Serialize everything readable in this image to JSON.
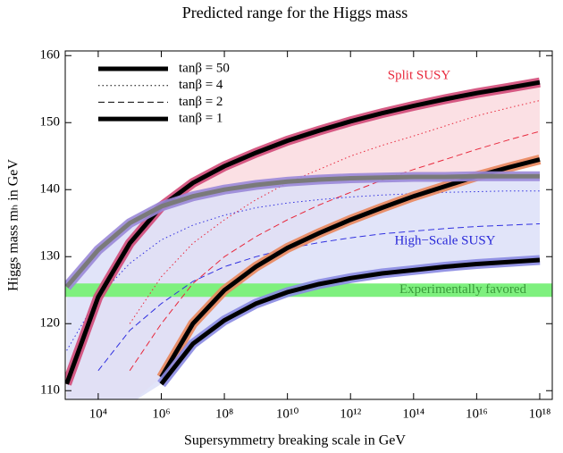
{
  "chart_data": {
    "type": "line",
    "title": "Predicted range for the Higgs mass",
    "x_label": "Supersymmetry breaking scale in GeV",
    "y_label": "Higgs mass mₕ in GeV",
    "xscale": "log",
    "x": [
      1000,
      10000,
      100000,
      1000000,
      10000000,
      100000000,
      1000000000,
      10000000000,
      100000000000,
      1000000000000,
      10000000000000,
      100000000000000,
      1000000000000000,
      10000000000000000,
      100000000000000000,
      1000000000000000000
    ],
    "xlim": [
      900,
      2500000000000000000
    ],
    "xticks": [
      {
        "value": 10000,
        "label": "10⁴"
      },
      {
        "value": 1000000,
        "label": "10⁶"
      },
      {
        "value": 100000000,
        "label": "10⁸"
      },
      {
        "value": 10000000000,
        "label": "10¹⁰"
      },
      {
        "value": 1000000000000,
        "label": "10¹²"
      },
      {
        "value": 100000000000000,
        "label": "10¹⁴"
      },
      {
        "value": 10000000000000000,
        "label": "10¹⁶"
      },
      {
        "value": 1000000000000000000,
        "label": "10¹⁸"
      }
    ],
    "ylim": [
      108.7,
      160.7
    ],
    "yticks": [
      110,
      120,
      130,
      140,
      150,
      160
    ],
    "legend": [
      {
        "name": "tanβ = 50",
        "dash": "none",
        "width": 5
      },
      {
        "name": "tanβ = 4",
        "dash": "1.5 3",
        "width": 1
      },
      {
        "name": "tanβ = 2",
        "dash": "7 4",
        "width": 1
      },
      {
        "name": "tanβ = 1",
        "dash": "none",
        "width": 5
      }
    ],
    "models": [
      {
        "label": "Split SUSY",
        "color": "#e8283c",
        "fill": "#fadadf",
        "series": [
          {
            "color": "#000000",
            "band_color": "#d24a78",
            "values": [
              111,
              124,
              132,
              137.5,
              141,
              143.5,
              145.5,
              147.3,
              148.8,
              150.2,
              151.4,
              152.5,
              153.5,
              154.4,
              155.2,
              156
            ]
          },
          {
            "color": "#e8283c",
            "values": [
              null,
              null,
              120,
              127,
              132,
              135.5,
              138.5,
              141,
              143,
              145,
              146.6,
              148,
              149.5,
              151,
              152.2,
              153.3
            ]
          },
          {
            "color": "#e8283c",
            "values": [
              null,
              null,
              113,
              120,
              126,
              130,
              133,
              135.5,
              137.7,
              139.6,
              141.4,
              143,
              144.5,
              146,
              147.4,
              148.7
            ]
          },
          {
            "color": "#000000",
            "band_color": "#e9865c",
            "values": [
              null,
              null,
              null,
              112,
              120,
              125,
              128.5,
              131.3,
              133.5,
              135.5,
              137.3,
              139,
              140.5,
              142,
              143.3,
              144.5
            ]
          }
        ]
      },
      {
        "label": "High−Scale SUSY",
        "color": "#2828d8",
        "fill": "#dcdff8",
        "series": [
          {
            "color": "#7a7a7a",
            "band_color": "#9a88d8",
            "values": [
              125.5,
              131,
              135,
              137.5,
              139,
              140,
              140.7,
              141.2,
              141.5,
              141.7,
              141.8,
              141.9,
              141.9,
              142,
              142,
              142
            ]
          },
          {
            "color": "#3030e0",
            "values": [
              116,
              124,
              129,
              132.5,
              134.7,
              136.2,
              137.3,
              138,
              138.5,
              138.9,
              139.2,
              139.4,
              139.6,
              139.7,
              139.8,
              139.8
            ]
          },
          {
            "color": "#3030e0",
            "values": [
              null,
              113,
              119,
              123,
              126.3,
              128.5,
              130,
              131.2,
              132.1,
              132.8,
              133.4,
              133.8,
              134.2,
              134.5,
              134.7,
              134.9
            ]
          },
          {
            "color": "#000000",
            "band_color": "#8a8ae2",
            "values": [
              null,
              null,
              null,
              111,
              117,
              120.5,
              123,
              124.7,
              125.9,
              126.8,
              127.5,
              128,
              128.5,
              128.9,
              129.2,
              129.5
            ]
          }
        ]
      }
    ],
    "band": {
      "label": "Experimentally favored",
      "ylim": [
        124,
        126
      ],
      "color": "#7ef07e",
      "text_color": "#3a9a3a"
    }
  }
}
